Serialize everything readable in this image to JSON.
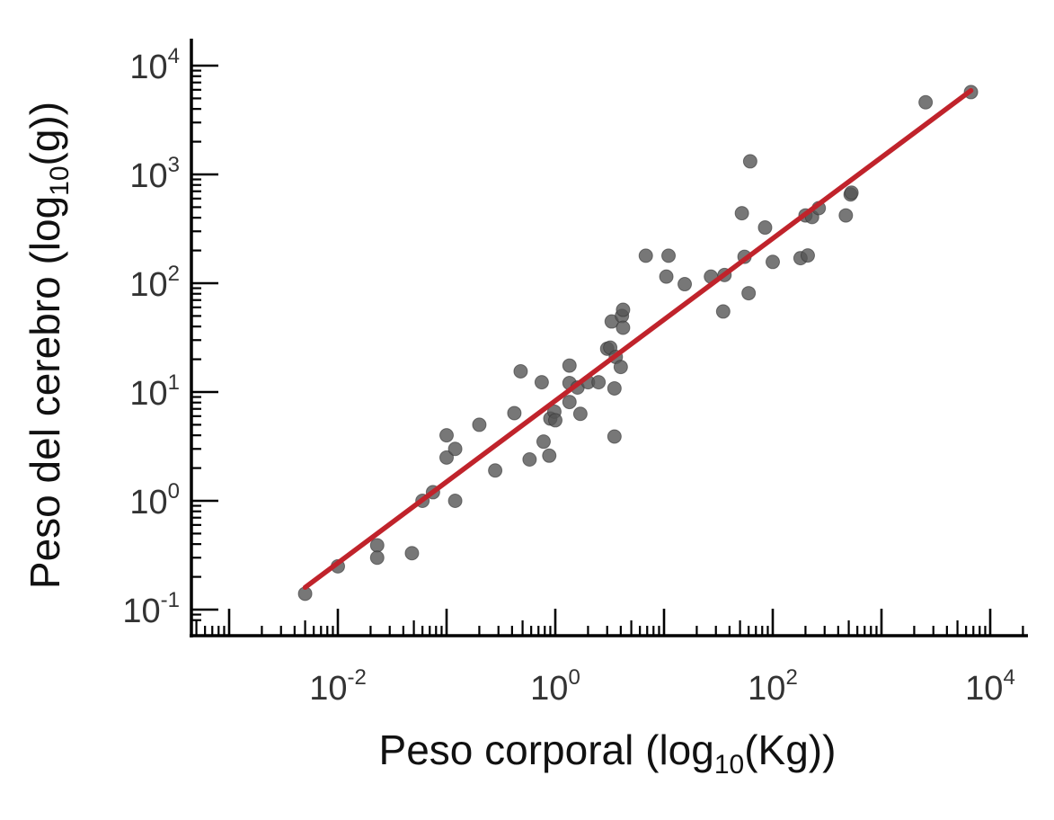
{
  "chart_data": {
    "type": "scatter",
    "xlabel": {
      "pre": "Peso corporal (log",
      "sub": "10",
      "post": "(Kg))"
    },
    "ylabel": {
      "pre": "Peso del cerebro (log",
      "sub": "10",
      "post": "(g))"
    },
    "x_scale": "log",
    "y_scale": "log",
    "x_ticks": [
      {
        "base": "10",
        "exp": "-2",
        "value": 0.01
      },
      {
        "base": "10",
        "exp": "0",
        "value": 1
      },
      {
        "base": "10",
        "exp": "2",
        "value": 100
      },
      {
        "base": "10",
        "exp": "4",
        "value": 10000
      }
    ],
    "y_ticks": [
      {
        "base": "10",
        "exp": "-1",
        "value": 0.1
      },
      {
        "base": "10",
        "exp": "0",
        "value": 1
      },
      {
        "base": "10",
        "exp": "1",
        "value": 10
      },
      {
        "base": "10",
        "exp": "2",
        "value": 100
      },
      {
        "base": "10",
        "exp": "3",
        "value": 1000
      },
      {
        "base": "10",
        "exp": "4",
        "value": 10000
      }
    ],
    "xlim": [
      0.0003,
      30000
    ],
    "ylim": [
      0.075,
      18000
    ],
    "grid": false,
    "point_color": "#555555",
    "line_color": "#c0232b",
    "points": [
      [
        0.005,
        0.14
      ],
      [
        0.01,
        0.25
      ],
      [
        0.023,
        0.39
      ],
      [
        0.023,
        0.3
      ],
      [
        0.048,
        0.33
      ],
      [
        0.06,
        1.0
      ],
      [
        0.075,
        1.2
      ],
      [
        0.1,
        4.0
      ],
      [
        0.1,
        2.5
      ],
      [
        0.12,
        3.0
      ],
      [
        0.12,
        1.0
      ],
      [
        0.2,
        5.0
      ],
      [
        0.28,
        1.9
      ],
      [
        0.42,
        6.4
      ],
      [
        0.48,
        15.5
      ],
      [
        0.58,
        2.4
      ],
      [
        0.75,
        12.3
      ],
      [
        0.78,
        3.5
      ],
      [
        0.88,
        2.6
      ],
      [
        0.9,
        5.7
      ],
      [
        0.98,
        6.6
      ],
      [
        1.0,
        5.5
      ],
      [
        1.35,
        17.5
      ],
      [
        1.35,
        12.1
      ],
      [
        1.35,
        8.1
      ],
      [
        1.6,
        11.0
      ],
      [
        1.7,
        6.3
      ],
      [
        2.0,
        12.3
      ],
      [
        2.5,
        12.3
      ],
      [
        3.0,
        25.0
      ],
      [
        3.2,
        25.6
      ],
      [
        3.3,
        44.5
      ],
      [
        3.5,
        10.8
      ],
      [
        3.5,
        3.9
      ],
      [
        3.6,
        21.0
      ],
      [
        4.0,
        17.0
      ],
      [
        4.1,
        50.0
      ],
      [
        4.2,
        57.0
      ],
      [
        4.2,
        39.0
      ],
      [
        6.8,
        179
      ],
      [
        10.5,
        115
      ],
      [
        11.0,
        179
      ],
      [
        15.5,
        98
      ],
      [
        27.0,
        115
      ],
      [
        35.0,
        55
      ],
      [
        36.0,
        119
      ],
      [
        52.0,
        440
      ],
      [
        55.0,
        175
      ],
      [
        60.0,
        81
      ],
      [
        62.0,
        1320
      ],
      [
        85.0,
        325
      ],
      [
        100.0,
        157
      ],
      [
        180.0,
        170
      ],
      [
        200.0,
        420
      ],
      [
        210.0,
        180
      ],
      [
        230.0,
        406
      ],
      [
        265.0,
        490
      ],
      [
        470.0,
        420
      ],
      [
        520.0,
        655
      ],
      [
        530.0,
        680
      ],
      [
        2547.0,
        4603
      ],
      [
        6654.0,
        5712
      ]
    ],
    "fit_line": {
      "x": [
        0.005,
        6654.0
      ],
      "y": [
        0.16,
        5900
      ]
    }
  }
}
